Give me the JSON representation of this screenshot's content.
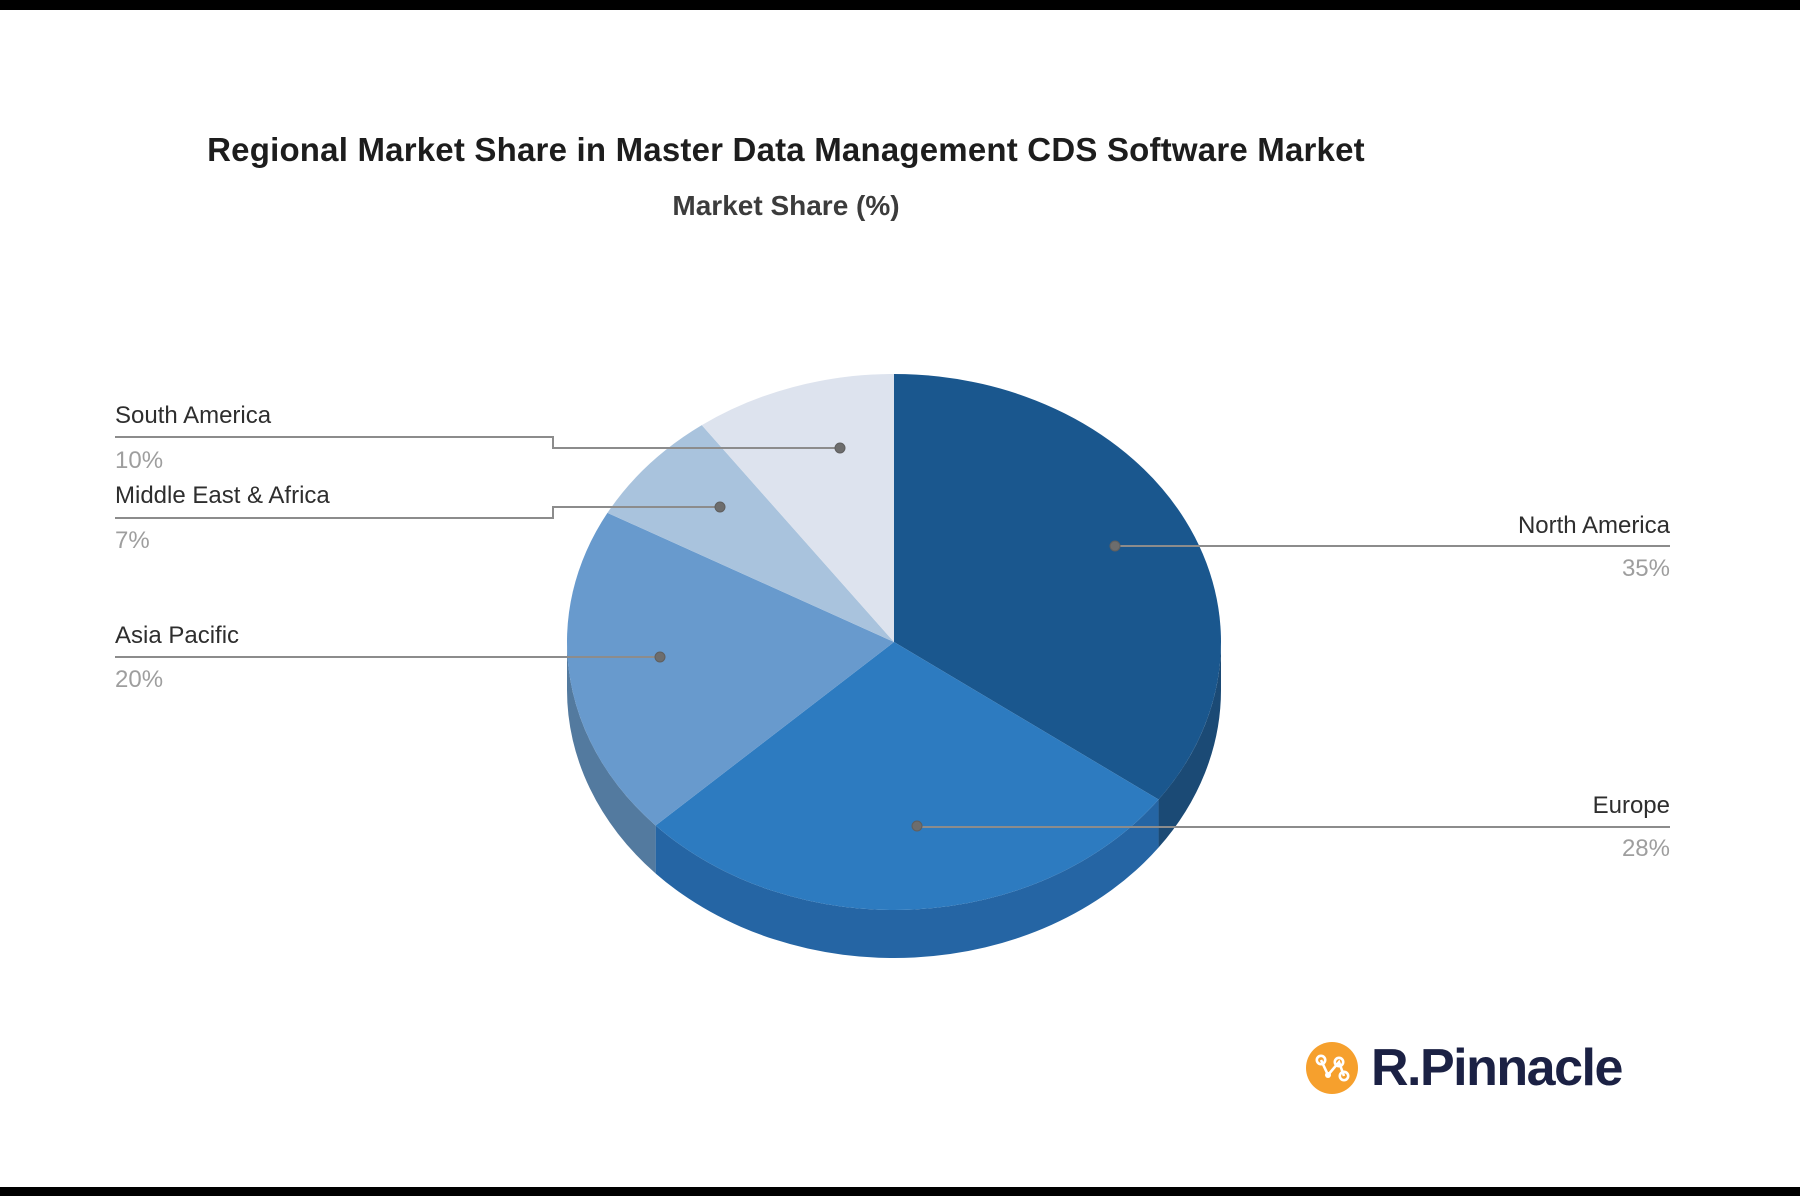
{
  "frame": {
    "background": "#ffffff",
    "bar_color": "#000000"
  },
  "chart_data": {
    "type": "pie",
    "effect": "3d",
    "title": "Regional Market Share in Master Data Management CDS Software Market",
    "subtitle": "Market Share (%)",
    "unit": "%",
    "start_angle_deg": 0,
    "clockwise": true,
    "legend": "none",
    "slices": [
      {
        "label": "North America",
        "value": 35,
        "pct": "35%",
        "color": "#1A578E",
        "side_color": "#1B4A75"
      },
      {
        "label": "Europe",
        "value": 28,
        "pct": "28%",
        "color": "#2D7BC0",
        "side_color": "#2565A4"
      },
      {
        "label": "Asia Pacific",
        "value": 20,
        "pct": "20%",
        "color": "#689ACD",
        "side_color": "#537A9F"
      },
      {
        "label": "Middle East & Africa",
        "value": 7,
        "pct": "7%",
        "color": "#A9C3DD",
        "side_color": "#8CA3B9"
      },
      {
        "label": "South America",
        "value": 10,
        "pct": "10%",
        "color": "#DDE3EE",
        "side_color": "#B8BFCD"
      }
    ],
    "callout_text_color": "#2e2e2e",
    "callout_pct_color": "#9e9e9e",
    "callout_line_color": "#8c8c8c",
    "callout_dot_color": "#6d6d6d"
  },
  "branding": {
    "logo_text": "R.Pinnacle",
    "logo_circle_color": "#F6A02D",
    "logo_text_color": "#1B2144"
  }
}
